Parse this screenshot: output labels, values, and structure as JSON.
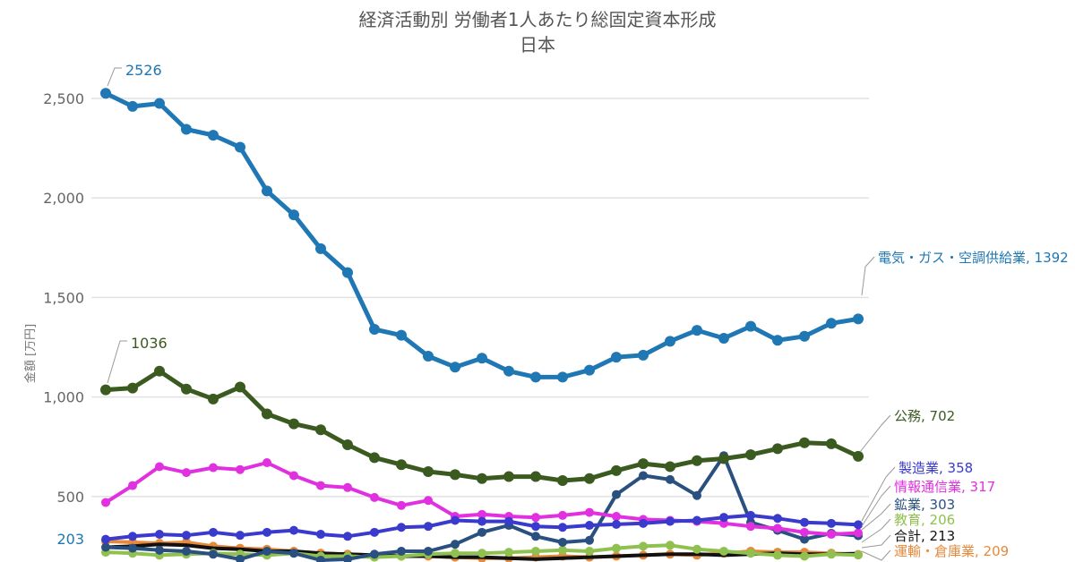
{
  "chart_data": {
    "type": "line",
    "title": "経済活動別 労働者1人あたり総固定資本形成",
    "subtitle": "日本",
    "xlabel": "",
    "ylabel": "金額 [万円]",
    "ylim": [
      0,
      2650
    ],
    "grid": true,
    "yticks": [
      {
        "value": 500,
        "label": "500"
      },
      {
        "value": 1000,
        "label": "1,000"
      },
      {
        "value": 1500,
        "label": "1,500"
      },
      {
        "value": 2000,
        "label": "2,000"
      },
      {
        "value": 2500,
        "label": "2,500"
      }
    ],
    "n_points": 29,
    "series": [
      {
        "name": "電気・ガス・空調供給業",
        "end_label": "電気・ガス・空調供給業, 1392",
        "start_label": "2526",
        "color": "#1f77b4",
        "values": [
          2526,
          2460,
          2475,
          2345,
          2315,
          2255,
          2035,
          1915,
          1745,
          1625,
          1340,
          1310,
          1205,
          1150,
          1195,
          1130,
          1100,
          1100,
          1135,
          1200,
          1210,
          1280,
          1335,
          1295,
          1355,
          1285,
          1305,
          1370,
          1392
        ]
      },
      {
        "name": "公務",
        "end_label": "公務, 702",
        "start_label": "1036",
        "color": "#3a5a20",
        "values": [
          1036,
          1045,
          1130,
          1040,
          990,
          1050,
          915,
          865,
          835,
          760,
          695,
          660,
          625,
          610,
          590,
          600,
          600,
          580,
          590,
          630,
          665,
          650,
          680,
          690,
          710,
          740,
          770,
          765,
          702
        ]
      },
      {
        "name": "製造業",
        "end_label": "製造業, 358",
        "color": "#3a3acc",
        "values": [
          285,
          300,
          310,
          305,
          320,
          305,
          320,
          330,
          310,
          300,
          320,
          345,
          350,
          380,
          375,
          375,
          350,
          345,
          355,
          360,
          365,
          375,
          380,
          395,
          405,
          390,
          370,
          365,
          358
        ]
      },
      {
        "name": "情報通信業",
        "end_label": "情報通信業, 317",
        "color": "#e030e0",
        "values": [
          470,
          555,
          650,
          620,
          645,
          635,
          670,
          605,
          555,
          545,
          495,
          455,
          480,
          400,
          410,
          400,
          395,
          405,
          420,
          400,
          385,
          380,
          375,
          365,
          350,
          340,
          320,
          310,
          317
        ]
      },
      {
        "name": "鉱業",
        "end_label": "鉱業, 303",
        "color": "#2a5080",
        "values": [
          245,
          240,
          230,
          225,
          210,
          185,
          225,
          215,
          180,
          185,
          210,
          225,
          225,
          260,
          320,
          355,
          300,
          270,
          280,
          510,
          605,
          585,
          505,
          705,
          370,
          330,
          285,
          315,
          303
        ]
      },
      {
        "name": "教育",
        "end_label": "教育, 206",
        "color": "#90c050",
        "values": [
          220,
          215,
          205,
          210,
          215,
          210,
          205,
          215,
          200,
          200,
          195,
          200,
          210,
          215,
          215,
          220,
          225,
          230,
          225,
          240,
          250,
          255,
          235,
          225,
          215,
          205,
          200,
          210,
          206
        ]
      },
      {
        "name": "合計",
        "end_label": "合計, 213",
        "color": "#111111",
        "values": [
          245,
          250,
          260,
          255,
          240,
          235,
          225,
          225,
          215,
          210,
          205,
          200,
          200,
          195,
          195,
          190,
          185,
          190,
          195,
          200,
          205,
          210,
          210,
          205,
          210,
          215,
          210,
          210,
          213
        ]
      },
      {
        "name": "運輸・倉庫業",
        "end_label": "運輸・倉庫業, 209",
        "color": "#e8883a",
        "values": [
          275,
          270,
          265,
          270,
          250,
          240,
          235,
          225,
          215,
          210,
          205,
          200,
          200,
          195,
          190,
          190,
          195,
          200,
          195,
          200,
          205,
          210,
          205,
          215,
          225,
          220,
          220,
          215,
          209
        ]
      }
    ],
    "extra_labels": [
      {
        "text": "203",
        "color": "#1f77b4"
      }
    ]
  }
}
